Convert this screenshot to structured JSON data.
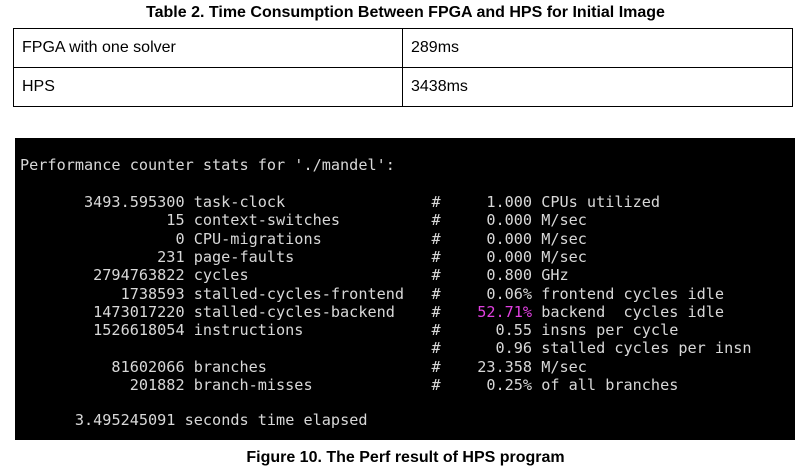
{
  "table_caption": "Table 2. Time Consumption Between FPGA and HPS for Initial Image",
  "table_rows": [
    {
      "label": "FPGA with one solver",
      "value": "289ms"
    },
    {
      "label": "HPS",
      "value": "3438ms"
    }
  ],
  "terminal": {
    "header": "Performance counter stats for './mandel':",
    "lines": [
      {
        "count": "3493.595300",
        "event": "task-clock",
        "hash": "#",
        "value": "1.000",
        "note": "CPUs utilized"
      },
      {
        "count": "15",
        "event": "context-switches",
        "hash": "#",
        "value": "0.000",
        "note": "M/sec"
      },
      {
        "count": "0",
        "event": "CPU-migrations",
        "hash": "#",
        "value": "0.000",
        "note": "M/sec"
      },
      {
        "count": "231",
        "event": "page-faults",
        "hash": "#",
        "value": "0.000",
        "note": "M/sec"
      },
      {
        "count": "2794763822",
        "event": "cycles",
        "hash": "#",
        "value": "0.800",
        "note": "GHz"
      },
      {
        "count": "1738593",
        "event": "stalled-cycles-frontend",
        "hash": "#",
        "value": "0.06%",
        "note": "frontend cycles idle"
      },
      {
        "count": "1473017220",
        "event": "stalled-cycles-backend",
        "hash": "#",
        "value": "52.71%",
        "note": "backend  cycles idle",
        "highlight": true
      },
      {
        "count": "1526618054",
        "event": "instructions",
        "hash": "#",
        "value": "0.55",
        "note": "insns per cycle"
      },
      {
        "count": "",
        "event": "",
        "hash": "#",
        "value": "0.96",
        "note": "stalled cycles per insn"
      },
      {
        "count": "81602066",
        "event": "branches",
        "hash": "#",
        "value": "23.358",
        "note": "M/sec"
      },
      {
        "count": "201882",
        "event": "branch-misses",
        "hash": "#",
        "value": "0.25%",
        "note": "of all branches"
      }
    ],
    "elapsed_value": "3.495245091",
    "elapsed_label": "seconds time elapsed",
    "highlight_color": "#e040e0"
  },
  "figure_caption": "Figure 10. The Perf result of HPS program"
}
